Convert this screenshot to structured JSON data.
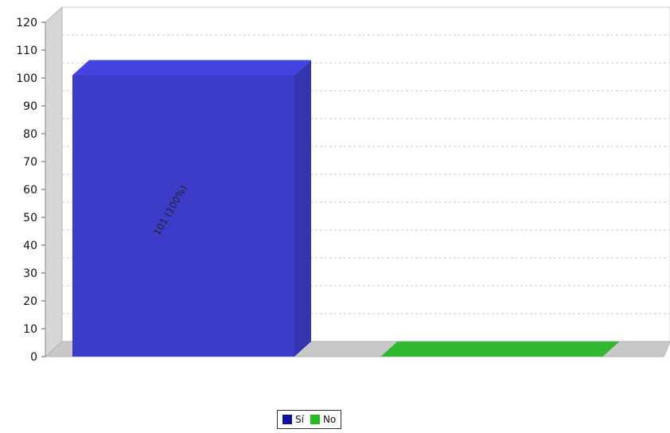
{
  "chart_data": {
    "type": "bar",
    "categories": [
      "Sí",
      "No"
    ],
    "values": [
      101,
      0
    ],
    "data_labels": [
      "101 (100%)",
      ""
    ],
    "ylim": [
      0,
      120
    ],
    "y_ticks": [
      0,
      10,
      20,
      30,
      40,
      50,
      60,
      70,
      80,
      90,
      100,
      110,
      120
    ],
    "grid": true,
    "three_d": true,
    "legend_position": "bottom",
    "colors": {
      "Sí": "#3c3cc8",
      "No": "#33b833"
    }
  },
  "legend": [
    {
      "label": "Sí",
      "color": "#1010a0"
    },
    {
      "label": "No",
      "color": "#22bb22"
    }
  ]
}
